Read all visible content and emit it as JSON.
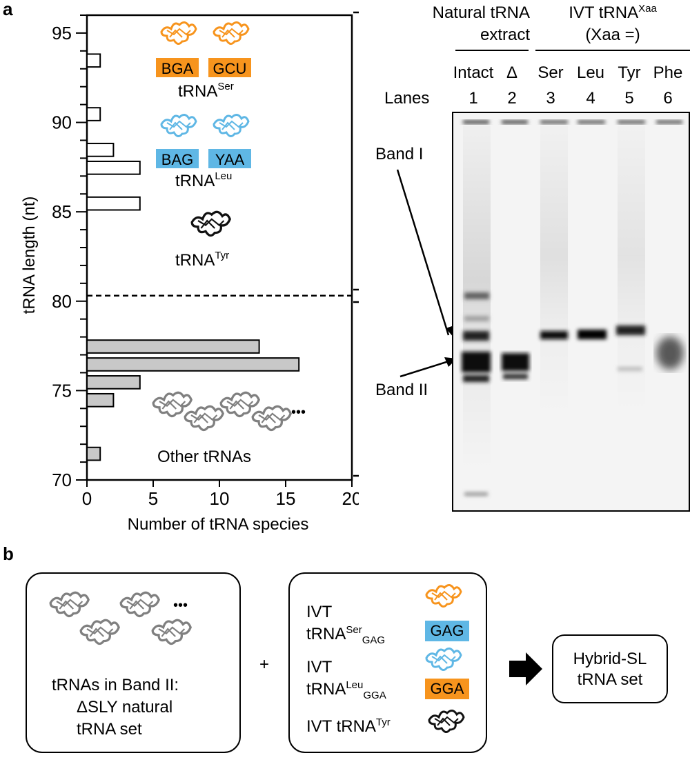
{
  "panel_a": {
    "label": "a",
    "chart_data": {
      "type": "bar",
      "orientation": "horizontal",
      "xlabel": "Number of tRNA species",
      "ylabel": "tRNA length (nt)",
      "xlim": [
        0,
        20
      ],
      "ylim": [
        70,
        96
      ],
      "xticks": [
        "0",
        "5",
        "10",
        "15",
        "20"
      ],
      "yticks": [
        "70",
        "75",
        "80",
        "85",
        "90",
        "95"
      ],
      "threshold_line": 80,
      "series": [
        {
          "group": "band1",
          "color": "#ffffff",
          "points": [
            {
              "length": 93,
              "count": 1
            },
            {
              "length": 90,
              "count": 1
            },
            {
              "length": 88,
              "count": 2
            },
            {
              "length": 87,
              "count": 4
            },
            {
              "length": 85,
              "count": 4
            }
          ]
        },
        {
          "group": "band2",
          "color": "#c8c8c8",
          "points": [
            {
              "length": 77,
              "count": 13
            },
            {
              "length": 76,
              "count": 16
            },
            {
              "length": 75,
              "count": 4
            },
            {
              "length": 74,
              "count": 2
            },
            {
              "length": 71,
              "count": 1
            }
          ]
        }
      ]
    },
    "annotations": {
      "ser_anticodons": [
        "BGA",
        "GCU"
      ],
      "ser_name": "tRNA",
      "ser_sup": "Ser",
      "leu_anticodons": [
        "BAG",
        "YAA"
      ],
      "leu_name": "tRNA",
      "leu_sup": "Leu",
      "tyr_name": "tRNA",
      "tyr_sup": "Tyr",
      "other_label": "Other tRNAs",
      "ellipsis": "•••"
    },
    "bands": {
      "band1": "Band I",
      "band2": "Band II"
    },
    "gel": {
      "header_natural_line1": "Natural tRNA",
      "header_natural_line2": "extract",
      "header_ivt_line1": "IVT tRNA",
      "header_ivt_sup": "Xaa",
      "header_ivt_line2": "(Xaa =)",
      "lanes_label": "Lanes",
      "lane_names": [
        "Intact",
        "Δ",
        "Ser",
        "Leu",
        "Tyr",
        "Phe"
      ],
      "lane_numbers": [
        "1",
        "2",
        "3",
        "4",
        "5",
        "6"
      ]
    },
    "colors": {
      "ser": "#f7941d",
      "leu": "#5fb7e5",
      "tyr": "#111111",
      "other": "#808080",
      "bar_gray": "#c8c8c8"
    }
  },
  "panel_b": {
    "label": "b",
    "left_box": {
      "line1": "tRNAs in Band II:",
      "line2": "ΔSLY natural",
      "line3": "tRNA set",
      "ellipsis": "•••"
    },
    "plus": "+",
    "middle_box": {
      "ser_ivt": "IVT",
      "ser_name": "tRNA",
      "ser_sup": "Ser",
      "ser_sub": "GAG",
      "ser_tag": "GAG",
      "leu_ivt": "IVT",
      "leu_name": "tRNA",
      "leu_sup": "Leu",
      "leu_sub": "GGA",
      "leu_tag": "GGA",
      "tyr_text": "IVT tRNA",
      "tyr_sup": "Tyr"
    },
    "right_box": {
      "line1": "Hybrid-SL",
      "line2": "tRNA set"
    }
  }
}
